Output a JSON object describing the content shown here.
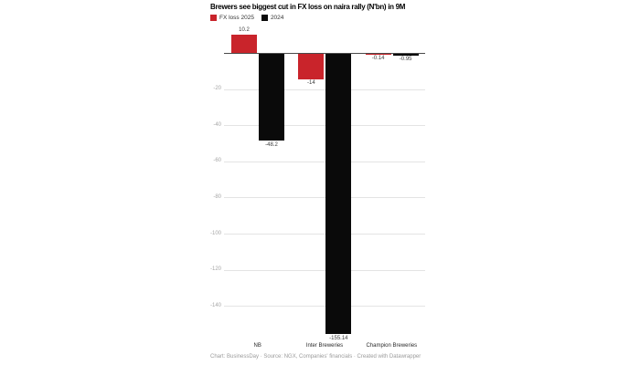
{
  "chart": {
    "footer": "Chart: BusinessDay · Source: NGX, Companies' financials · Created with Datawrapper"
  },
  "chart_data": {
    "type": "bar",
    "title": "Brewers see biggest cut in FX loss on naira rally (N'bn) in 9M",
    "categories": [
      "NB",
      "Inter Breweries",
      "Champion Breweries"
    ],
    "series": [
      {
        "name": "FX loss 2025",
        "color": "#c9242b",
        "values": [
          10.2,
          -14,
          -0.14
        ],
        "labels": [
          "10.2",
          "-14",
          "-0.14"
        ]
      },
      {
        "name": "2024",
        "color": "#0a0a0a",
        "values": [
          -48.2,
          -155.14,
          -0.95
        ],
        "labels": [
          "-48.2",
          "-155.14",
          "-0.95"
        ]
      }
    ],
    "xlabel": "",
    "ylabel": "",
    "yticks": [
      -20,
      -40,
      -60,
      -80,
      -100,
      -120,
      -140
    ],
    "ylim": [
      -160,
      15
    ],
    "grid": true,
    "legend_position": "top-left",
    "zero_line": true
  }
}
